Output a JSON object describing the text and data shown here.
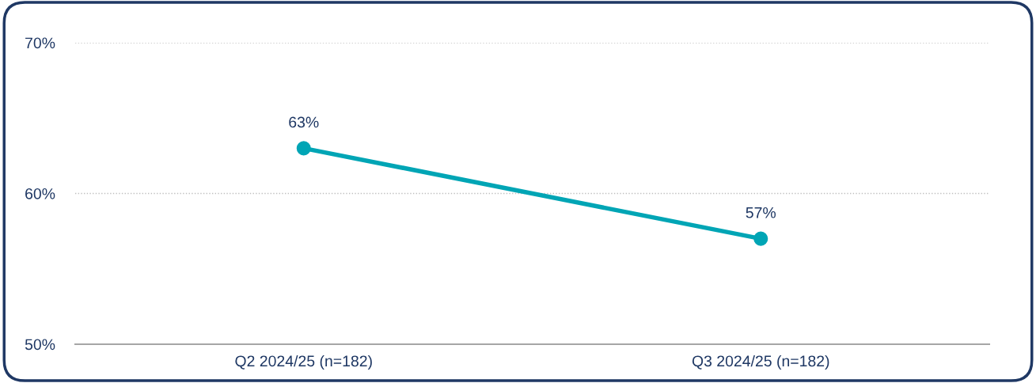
{
  "chart_data": {
    "type": "line",
    "categories": [
      "Q2 2024/25 (n=182)",
      "Q3 2024/25 (n=182)"
    ],
    "series": [
      {
        "color": "#00a5b5",
        "values": [
          63,
          57
        ],
        "value_labels": [
          "63%",
          "57%"
        ]
      }
    ],
    "ylim": [
      50,
      70
    ],
    "yticks": [
      {
        "value": 50,
        "label": "50%"
      },
      {
        "value": 60,
        "label": "60%"
      },
      {
        "value": 70,
        "label": "70%"
      }
    ],
    "grid": "y",
    "marker": "circle",
    "line_style": "solid"
  }
}
